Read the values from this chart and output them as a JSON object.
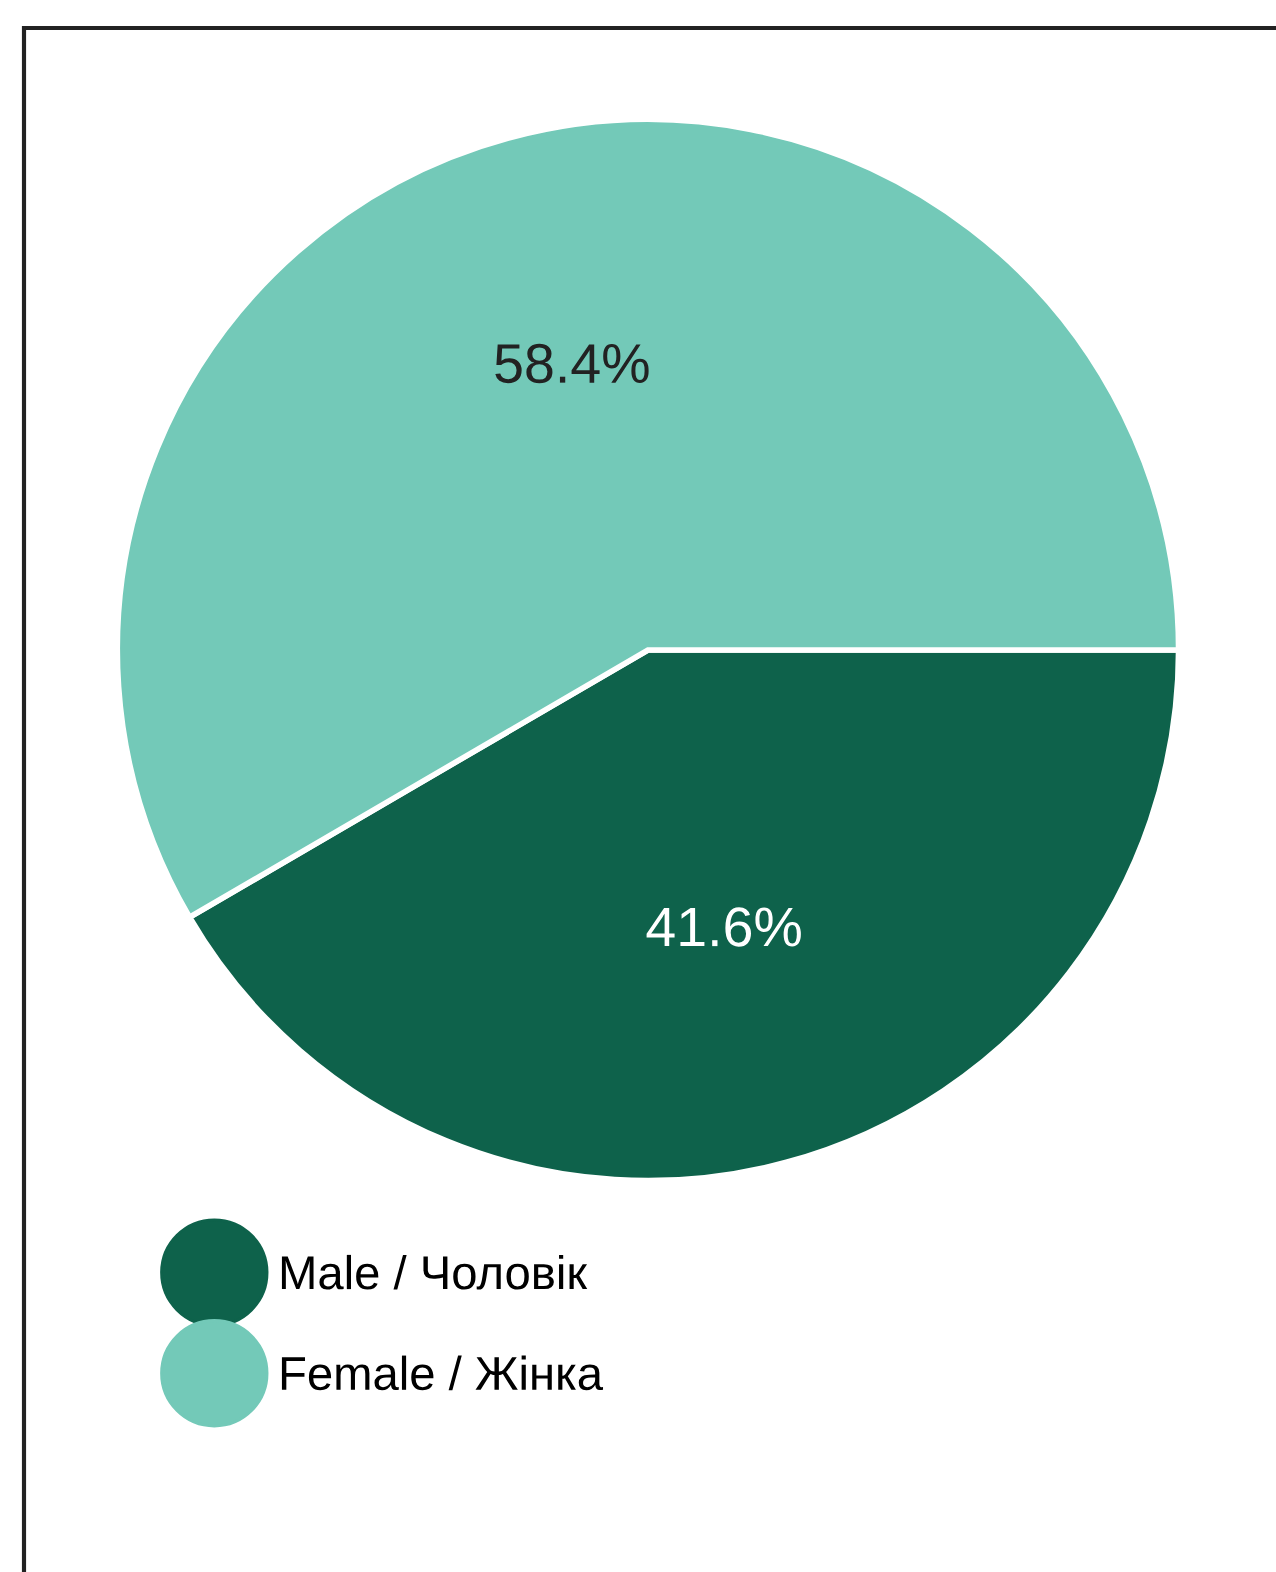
{
  "chart_data": {
    "type": "pie",
    "categories": [
      "Male / Чоловік",
      "Female / Жінка"
    ],
    "values": [
      41.6,
      58.4
    ],
    "colors": [
      "#0e624b",
      "#73c9b8"
    ],
    "value_labels": [
      "41.6%",
      "58.4%"
    ],
    "legend": "bottom left"
  }
}
